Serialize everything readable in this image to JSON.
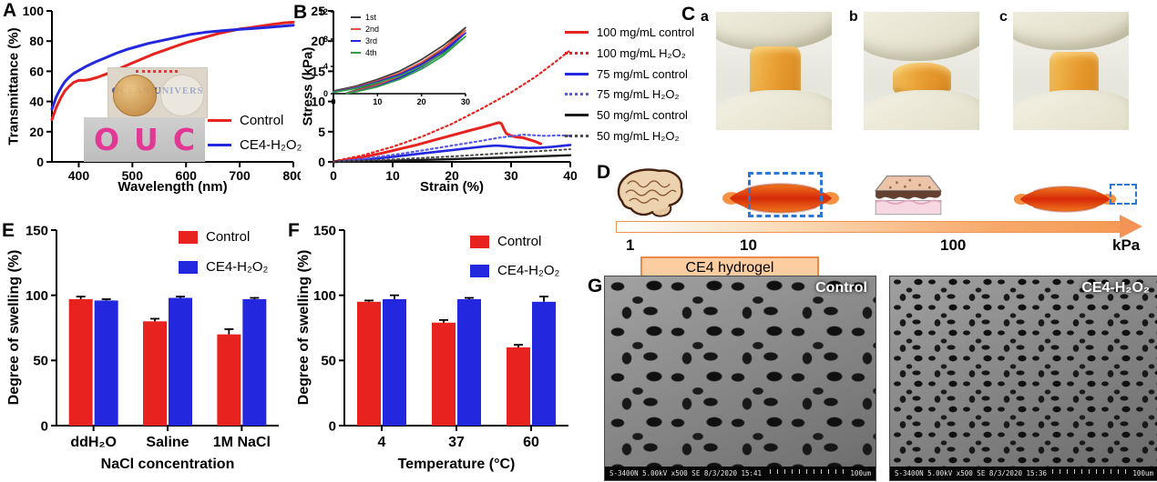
{
  "panels": {
    "A": {
      "label": "A",
      "legend": [
        {
          "label": "Control",
          "color": "#e8231f"
        },
        {
          "label": "CE4-H₂O₂",
          "color": "#2328de"
        }
      ],
      "inset_top_text": "OCEAN UNIVERS",
      "inset_letters": [
        "O",
        "U",
        "C"
      ]
    },
    "B": {
      "label": "B",
      "legend": [
        {
          "label": "100 mg/mL control",
          "color": "#e8231f",
          "dash": false
        },
        {
          "label": "100 mg/mL H₂O₂",
          "color": "#e8231f",
          "dash": true
        },
        {
          "label": "75 mg/mL control",
          "color": "#2328de",
          "dash": false
        },
        {
          "label": "75 mg/mL H₂O₂",
          "color": "#5a5ae8",
          "dash": true
        },
        {
          "label": "50 mg/mL control",
          "color": "#1a1a1a",
          "dash": false
        },
        {
          "label": "50 mg/mL H₂O₂",
          "color": "#4a4a4a",
          "dash": true
        }
      ],
      "inset_legend": [
        {
          "label": "1st",
          "color": "#3a3a3a"
        },
        {
          "label": "2nd",
          "color": "#e8533f"
        },
        {
          "label": "3rd",
          "color": "#2328de"
        },
        {
          "label": "4th",
          "color": "#2f9e46"
        }
      ]
    },
    "C": {
      "label": "C",
      "photos": [
        {
          "label": "a"
        },
        {
          "label": "b"
        },
        {
          "label": "c"
        }
      ]
    },
    "D": {
      "label": "D",
      "scale_ticks": [
        "1",
        "10",
        "100",
        "kPa"
      ],
      "hydrogel_label": "CE4 hydrogel"
    },
    "E": {
      "label": "E",
      "legend": [
        {
          "label": "Control",
          "color": "#e8231f"
        },
        {
          "label": "CE4-H₂O₂",
          "color": "#2328de"
        }
      ]
    },
    "F": {
      "label": "F",
      "legend": [
        {
          "label": "Control",
          "color": "#e8231f"
        },
        {
          "label": "CE4-H₂O₂",
          "color": "#2328de"
        }
      ]
    },
    "G": {
      "label": "G",
      "images": [
        {
          "title": "Control",
          "info": "S-3400N 5.00kV x500 SE  8/3/2020 15:41",
          "scale": "100um"
        },
        {
          "title": "CE4-H₂O₂",
          "info": "S-3400N 5.00kV x500 SE  8/3/2020 15:36",
          "scale": "100um"
        }
      ]
    }
  },
  "chart_data": [
    {
      "id": "A",
      "type": "line",
      "xlabel": "Wavelength (nm)",
      "ylabel": "Transmittance (%)",
      "xlim": [
        350,
        800
      ],
      "ylim": [
        0,
        100
      ],
      "xticks": [
        400,
        500,
        600,
        700,
        800
      ],
      "yticks": [
        0,
        20,
        40,
        60,
        80,
        100
      ],
      "series": [
        {
          "name": "Control",
          "color": "#e8231f",
          "w": 3,
          "x": [
            350,
            358,
            366,
            374,
            382,
            390,
            400,
            410,
            420,
            435,
            450,
            465,
            480,
            500,
            520,
            540,
            560,
            580,
            600,
            620,
            640,
            660,
            680,
            700,
            720,
            740,
            760,
            780,
            800
          ],
          "y": [
            28,
            36,
            42,
            47,
            50,
            52.5,
            54,
            54,
            54.5,
            56,
            58,
            60,
            62.5,
            65.5,
            68.5,
            71.5,
            74,
            76.5,
            79,
            81,
            83,
            85,
            86.5,
            88,
            89,
            90,
            91,
            92,
            92.5
          ]
        },
        {
          "name": "CE4-H₂O₂",
          "color": "#2328de",
          "w": 3,
          "x": [
            350,
            358,
            366,
            374,
            382,
            390,
            400,
            415,
            430,
            450,
            470,
            490,
            510,
            530,
            550,
            570,
            590,
            610,
            640,
            670,
            700,
            730,
            760,
            800
          ],
          "y": [
            35,
            43,
            48.5,
            53,
            56,
            58.5,
            60.5,
            63.5,
            66,
            69,
            72,
            74.5,
            76.5,
            78.5,
            80,
            81.5,
            83,
            84.5,
            86,
            87,
            87.8,
            88.5,
            89.3,
            90.5
          ]
        }
      ]
    },
    {
      "id": "B",
      "type": "line",
      "xlabel": "Strain (%)",
      "ylabel": "Stress (kPa)",
      "xlim": [
        0,
        40
      ],
      "ylim": [
        0,
        25
      ],
      "xticks": [
        0,
        10,
        20,
        30,
        40
      ],
      "yticks": [
        0,
        5,
        10,
        15,
        20,
        25
      ],
      "series": [
        {
          "name": "100 mg/mL control",
          "color": "#e8231f",
          "w": 3,
          "x": [
            0,
            2,
            5,
            8,
            11,
            14,
            17,
            20,
            23,
            25,
            26.5,
            27.5,
            28,
            28.4,
            28.8,
            29.2,
            30,
            31,
            32,
            33,
            34,
            35
          ],
          "y": [
            0,
            0.3,
            0.8,
            1.4,
            2.1,
            2.8,
            3.6,
            4.4,
            5.2,
            5.7,
            6.1,
            6.4,
            6.5,
            6.3,
            5.4,
            4.7,
            4.3,
            4.1,
            4.0,
            3.7,
            3.4,
            3.0
          ]
        },
        {
          "name": "100 mg/mL H₂O₂",
          "color": "#e8231f",
          "w": 2.2,
          "dash": true,
          "x": [
            0,
            5,
            10,
            15,
            20,
            25,
            30,
            34,
            37,
            40
          ],
          "y": [
            0.1,
            1.1,
            2.5,
            4.2,
            6.3,
            8.8,
            11.5,
            14.0,
            16.2,
            18.5
          ]
        },
        {
          "name": "75 mg/mL control",
          "color": "#2328de",
          "w": 2.6,
          "x": [
            0,
            5,
            10,
            15,
            20,
            24,
            26,
            27.5,
            29,
            31,
            33,
            35,
            37,
            40
          ],
          "y": [
            0,
            0.35,
            0.85,
            1.4,
            1.95,
            2.4,
            2.6,
            2.7,
            2.6,
            2.4,
            2.3,
            2.35,
            2.5,
            2.8
          ]
        },
        {
          "name": "75 mg/mL H₂O₂",
          "color": "#5a5ae8",
          "w": 2.2,
          "dash": true,
          "x": [
            0,
            5,
            10,
            15,
            20,
            25,
            28,
            30,
            32,
            34,
            36,
            38,
            40
          ],
          "y": [
            0,
            0.5,
            1.15,
            1.9,
            2.7,
            3.5,
            4.0,
            4.25,
            4.5,
            4.4,
            4.3,
            4.4,
            4.3
          ]
        },
        {
          "name": "50 mg/mL control",
          "color": "#1a1a1a",
          "w": 2.4,
          "x": [
            0,
            10,
            20,
            30,
            40
          ],
          "y": [
            0,
            0.2,
            0.45,
            0.75,
            1.1
          ]
        },
        {
          "name": "50 mg/mL H₂O₂",
          "color": "#4a4a4a",
          "w": 2,
          "dash": true,
          "x": [
            0,
            10,
            20,
            30,
            40
          ],
          "y": [
            0.05,
            0.4,
            0.9,
            1.5,
            2.1
          ]
        }
      ]
    },
    {
      "id": "B-inset",
      "type": "line",
      "xlabel": "",
      "ylabel": "",
      "xlim": [
        0,
        30
      ],
      "ylim": [
        0,
        12
      ],
      "xticks": [
        0,
        10,
        20,
        30
      ],
      "yticks": [
        0,
        4,
        8,
        12
      ],
      "series": [
        {
          "name": "1st",
          "color": "#3a3a3a",
          "w": 1.7,
          "x": [
            0,
            5,
            10,
            15,
            20,
            25,
            30,
            25,
            20,
            15,
            10,
            5,
            3
          ],
          "y": [
            0.4,
            1.1,
            2.1,
            3.3,
            5.0,
            7.1,
            9.7,
            6.6,
            4.4,
            2.8,
            1.5,
            0.5,
            0.1
          ]
        },
        {
          "name": "2nd",
          "color": "#e8533f",
          "w": 1.7,
          "x": [
            0,
            5,
            10,
            15,
            20,
            25,
            30,
            25,
            20,
            15,
            10,
            5,
            3
          ],
          "y": [
            0.3,
            0.95,
            1.9,
            3.0,
            4.6,
            6.7,
            9.3,
            6.3,
            4.1,
            2.5,
            1.3,
            0.4,
            0.05
          ]
        },
        {
          "name": "3rd",
          "color": "#2328de",
          "w": 1.7,
          "x": [
            0,
            5,
            10,
            15,
            20,
            25,
            30,
            25,
            20,
            15,
            10,
            5,
            3
          ],
          "y": [
            0.25,
            0.85,
            1.75,
            2.8,
            4.3,
            6.3,
            8.9,
            6.0,
            3.9,
            2.3,
            1.1,
            0.3,
            0.05
          ]
        },
        {
          "name": "4th",
          "color": "#2f9e46",
          "w": 1.7,
          "x": [
            0,
            5,
            10,
            15,
            20,
            25,
            30,
            25,
            20,
            15,
            10,
            5,
            3
          ],
          "y": [
            0.2,
            0.75,
            1.6,
            2.6,
            4.0,
            5.9,
            8.4,
            5.6,
            3.6,
            2.1,
            1.0,
            0.25,
            0.05
          ]
        }
      ]
    },
    {
      "id": "E",
      "type": "bar",
      "xlabel": "NaCl concentration",
      "ylabel": "Degree of swelling (%)",
      "categories": [
        "ddH₂O",
        "Saline",
        "1M NaCl"
      ],
      "ylim": [
        0,
        150
      ],
      "yticks": [
        0,
        50,
        100,
        150
      ],
      "series": [
        {
          "name": "Control",
          "color": "#e8231f",
          "values": [
            97,
            80,
            70
          ],
          "errors": [
            2,
            2,
            4
          ]
        },
        {
          "name": "CE4-H₂O₂",
          "color": "#2328de",
          "values": [
            96,
            98,
            97
          ],
          "errors": [
            1,
            1,
            1
          ]
        }
      ]
    },
    {
      "id": "F",
      "type": "bar",
      "xlabel": "Temperature (°C)",
      "ylabel": "Degree of swelling (%)",
      "categories": [
        "4",
        "37",
        "60"
      ],
      "ylim": [
        0,
        150
      ],
      "yticks": [
        0,
        50,
        100,
        150
      ],
      "series": [
        {
          "name": "Control",
          "color": "#e8231f",
          "values": [
            95,
            79,
            60
          ],
          "errors": [
            1,
            2,
            2
          ]
        },
        {
          "name": "CE4-H₂O₂",
          "color": "#2328de",
          "values": [
            97,
            97,
            95
          ],
          "errors": [
            3,
            1,
            4
          ]
        }
      ]
    }
  ]
}
